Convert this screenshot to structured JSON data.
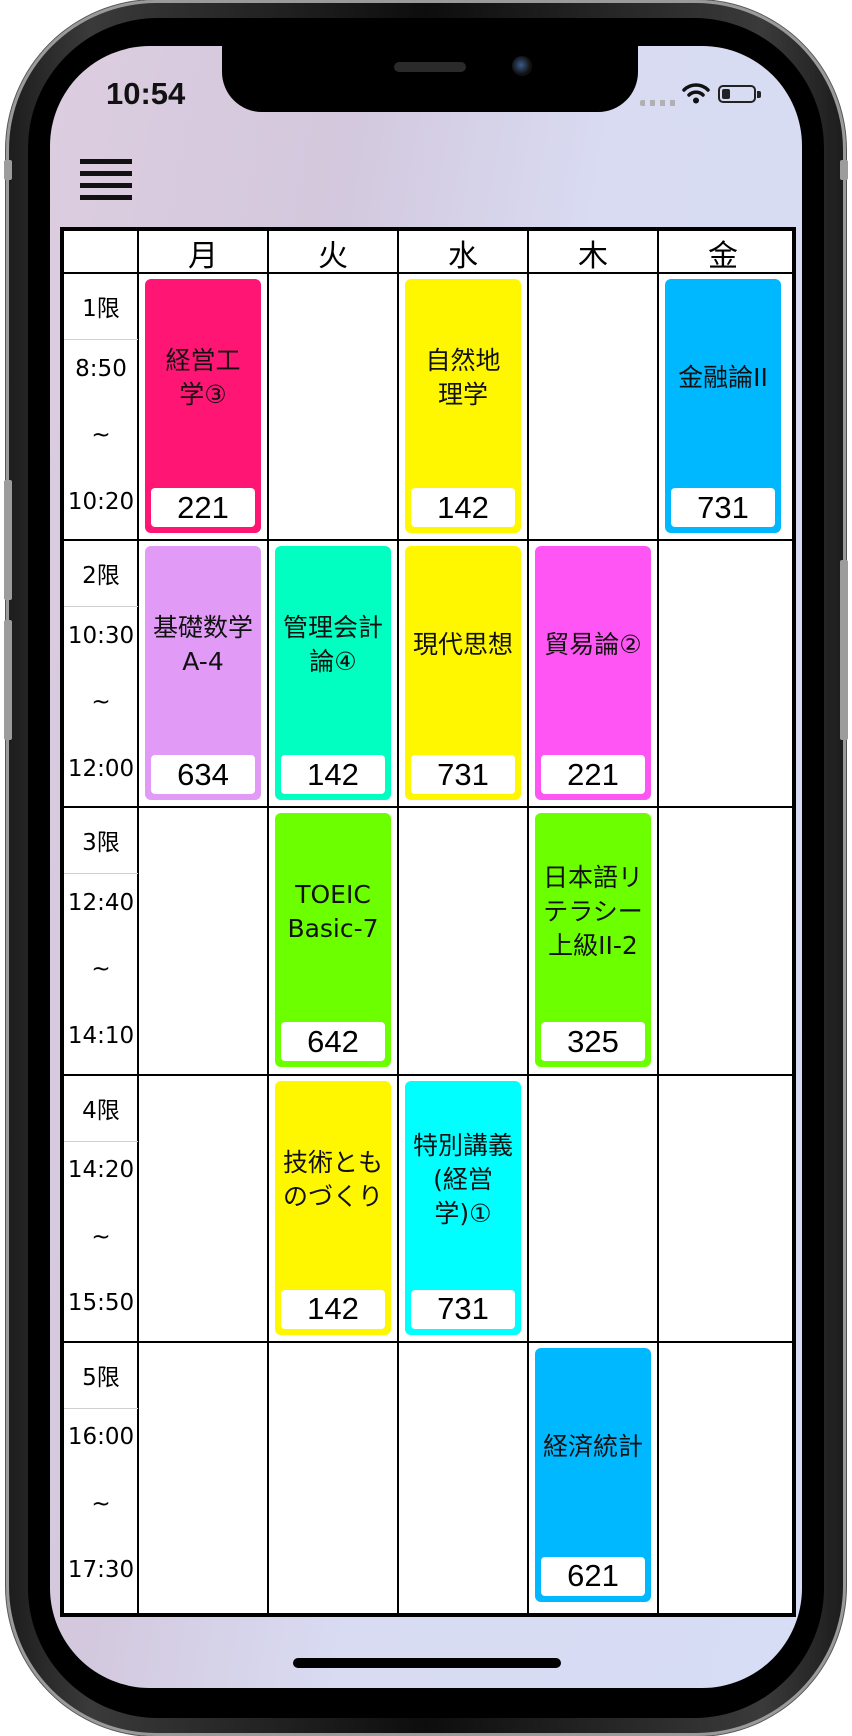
{
  "status_bar": {
    "time": "10:54"
  },
  "days": [
    "月",
    "火",
    "水",
    "木",
    "金"
  ],
  "periods": [
    {
      "label": "1限",
      "start": "8:50",
      "sep": "~",
      "end": "10:20"
    },
    {
      "label": "2限",
      "start": "10:30",
      "sep": "~",
      "end": "12:00"
    },
    {
      "label": "3限",
      "start": "12:40",
      "sep": "~",
      "end": "14:10"
    },
    {
      "label": "4限",
      "start": "14:20",
      "sep": "~",
      "end": "15:50"
    },
    {
      "label": "5限",
      "start": "16:00",
      "sep": "~",
      "end": "17:30"
    }
  ],
  "courses": [
    {
      "day": 0,
      "period": 0,
      "name": "経営工\n学③",
      "room": "221",
      "color": "#ff1574"
    },
    {
      "day": 2,
      "period": 0,
      "name": "自然地\n理学",
      "room": "142",
      "color": "#fff700"
    },
    {
      "day": 4,
      "period": 0,
      "name": "金融論II",
      "room": "731",
      "color": "#00b8ff"
    },
    {
      "day": 0,
      "period": 1,
      "name": "基礎数学\nA-4",
      "room": "634",
      "color": "#e19af5"
    },
    {
      "day": 1,
      "period": 1,
      "name": "管理会計\n論④",
      "room": "142",
      "color": "#00ffc0"
    },
    {
      "day": 2,
      "period": 1,
      "name": "現代思想",
      "room": "731",
      "color": "#fff700"
    },
    {
      "day": 3,
      "period": 1,
      "name": "貿易論②",
      "room": "221",
      "color": "#ff55f5"
    },
    {
      "day": 1,
      "period": 2,
      "name": "TOEIC\nBasic-7",
      "room": "642",
      "color": "#6bff00"
    },
    {
      "day": 3,
      "period": 2,
      "name": "日本語リ\nテラシー\n上級II-2",
      "room": "325",
      "color": "#6bff00"
    },
    {
      "day": 1,
      "period": 3,
      "name": "技術とも\nのづくり",
      "room": "142",
      "color": "#fff700"
    },
    {
      "day": 2,
      "period": 3,
      "name": "特別講義\n(経営\n学)①",
      "room": "731",
      "color": "#00ffff"
    },
    {
      "day": 3,
      "period": 4,
      "name": "経済統計",
      "room": "621",
      "color": "#00b8ff"
    }
  ]
}
